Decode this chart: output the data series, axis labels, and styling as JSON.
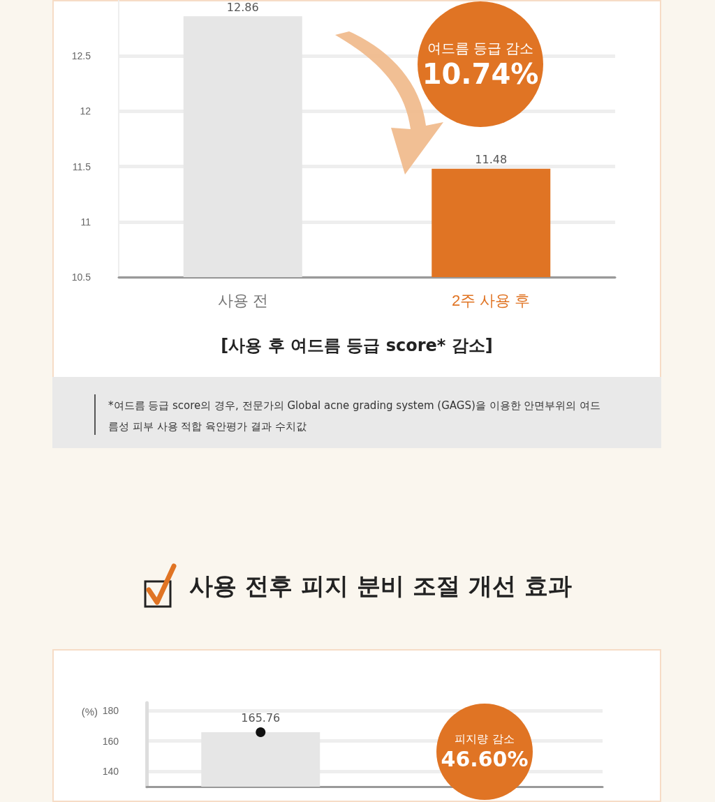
{
  "chart_data": [
    {
      "type": "bar",
      "title": "[사용 후 여드름 등급 score* 감소]",
      "categories": [
        "사용 전",
        "2주 사용 후"
      ],
      "values": [
        12.86,
        11.48
      ],
      "colors": [
        "#e6e6e6",
        "#e07424"
      ],
      "ylim": [
        10.5,
        13
      ],
      "yticks": [
        10.5,
        11,
        11.5,
        12,
        12.5
      ],
      "grid": "y",
      "data_labels": true,
      "annotations": [
        "여드름 등급 감소",
        "10.74%",
        "*여드름 등급 score의 경우, 전문가의  Global acne grading system (GAGS)을 이용한 안면부위의 여드름성 피부 사용 적합 육안평가 결과 수치값"
      ]
    },
    {
      "type": "bar",
      "title": "사용 전후 피지 분비 조절 개선 효과",
      "ylabel": "(%)",
      "categories": [
        null,
        null
      ],
      "series": [
        {
          "type": "bar",
          "color": "#e6e6e6",
          "values": [
            165.76,
            null
          ]
        },
        {
          "type": "line",
          "color": "#111111",
          "marker": "circle",
          "values": [
            165.76,
            null
          ],
          "value_labels": [
            "165.76",
            null
          ]
        }
      ],
      "ylim": [
        130,
        185
      ],
      "yticks": [
        140,
        160,
        180
      ],
      "grid": "y",
      "annotations": [
        "피지량 감소",
        "46.60%"
      ]
    }
  ]
}
